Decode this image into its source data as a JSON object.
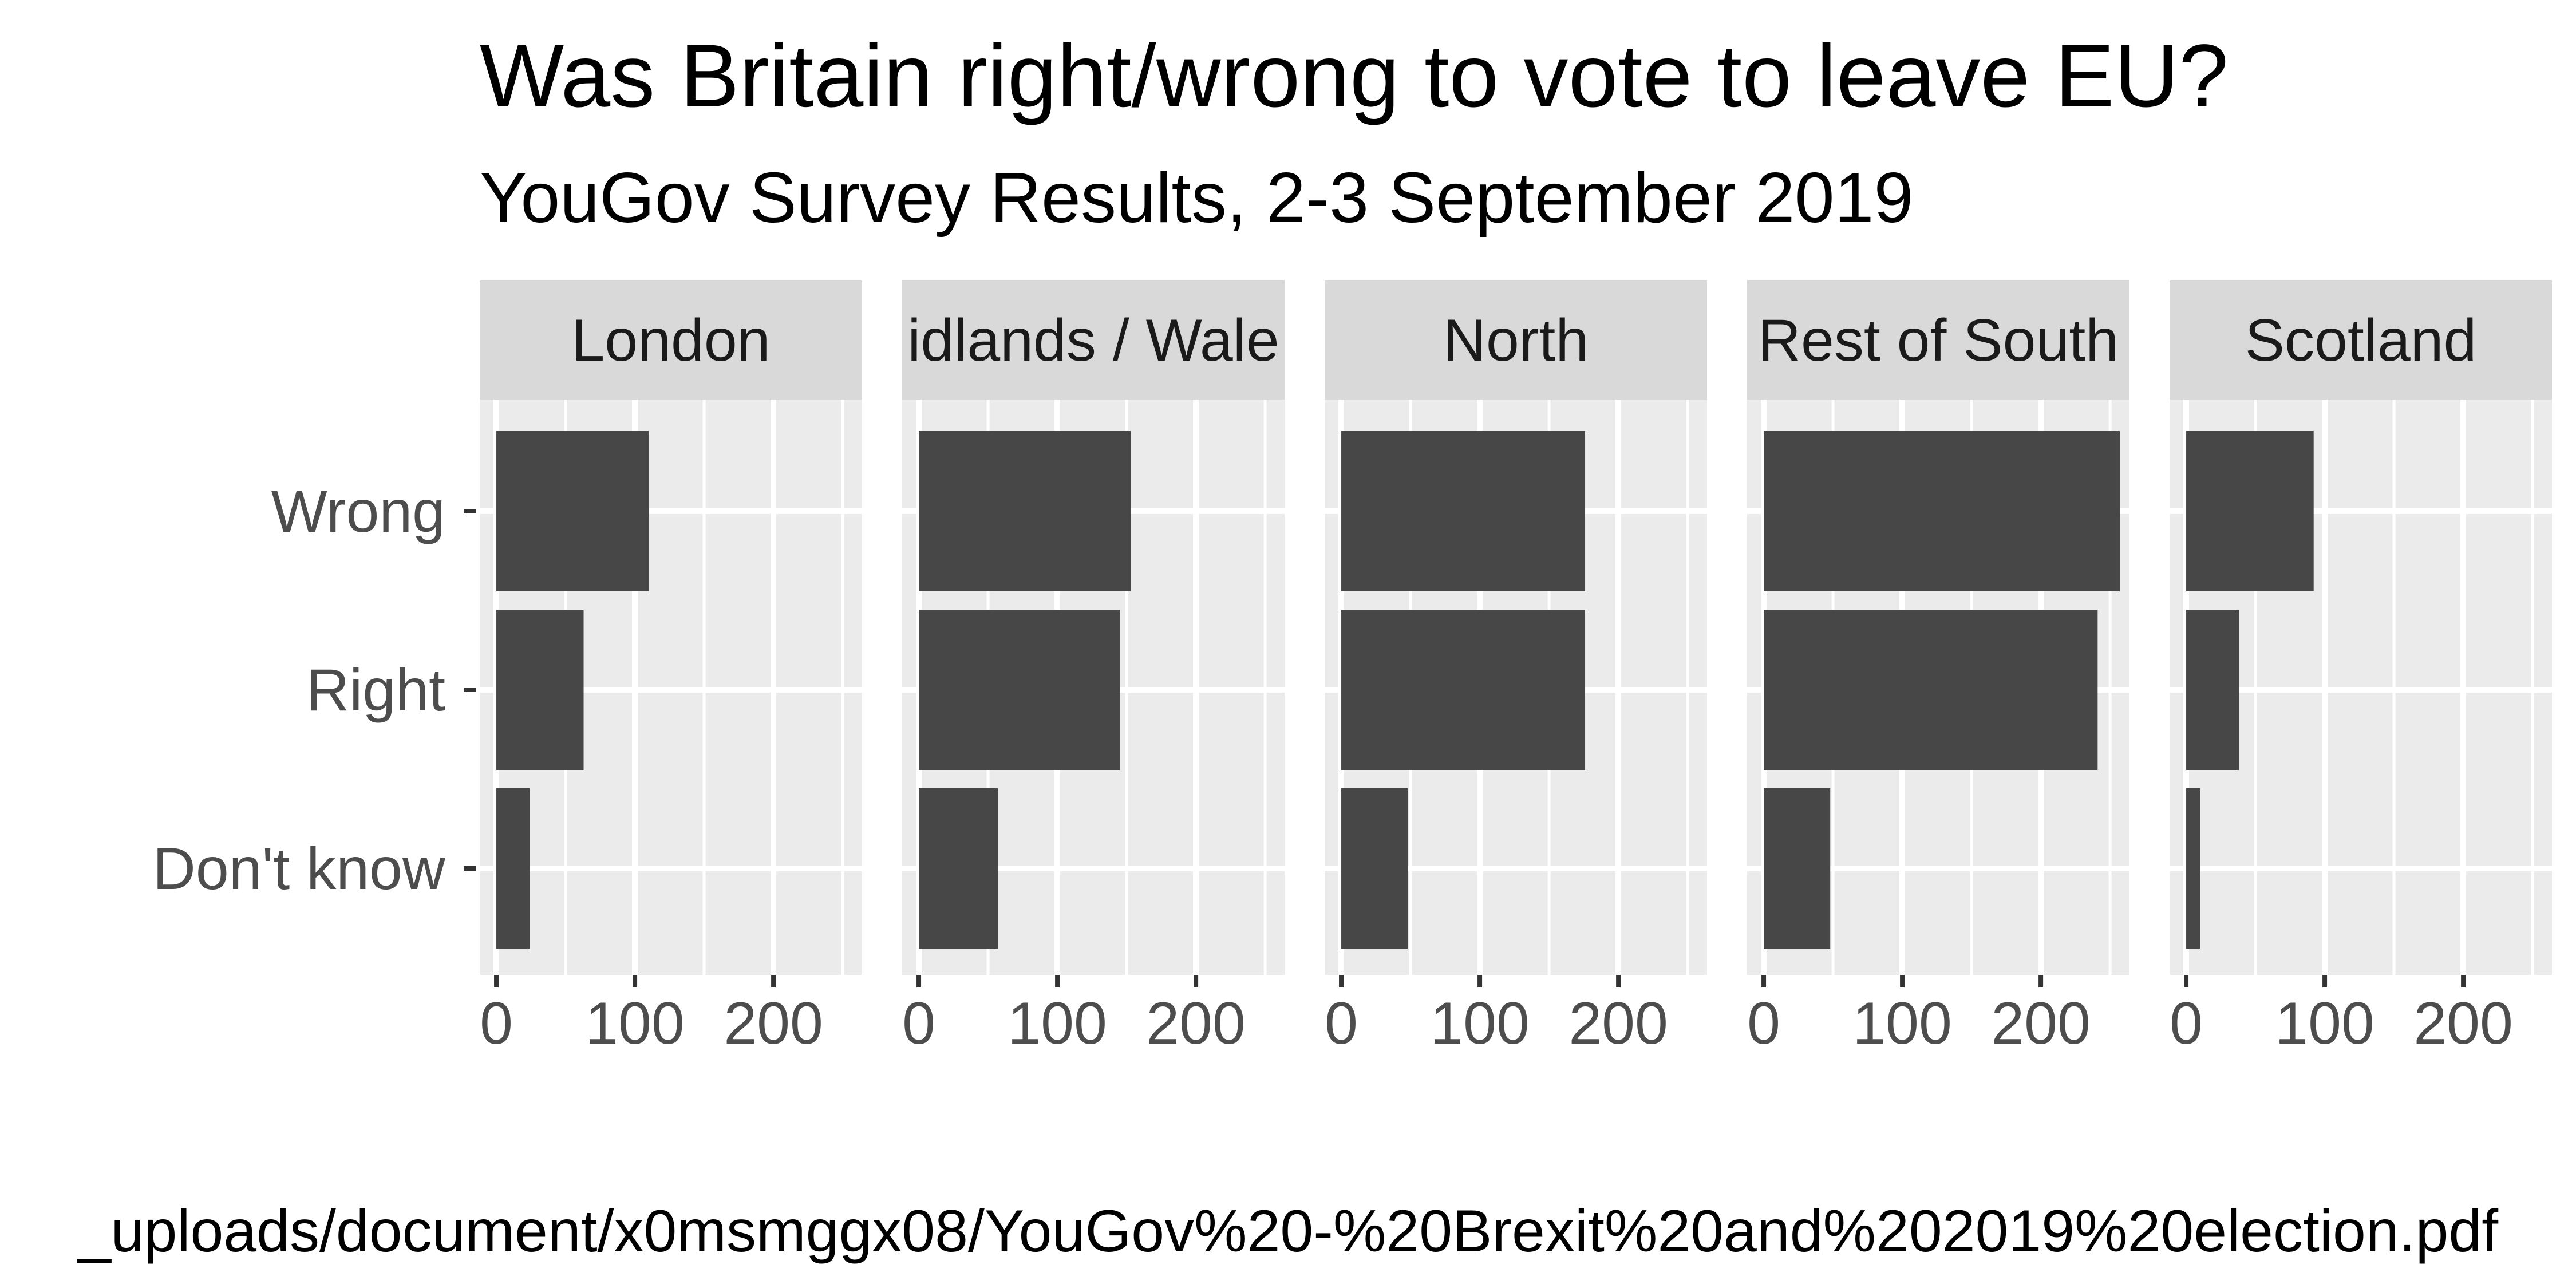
{
  "chart_data": {
    "type": "bar",
    "orientation": "horizontal",
    "faceted": true,
    "title": "Was Britain right/wrong to vote to leave EU?",
    "subtitle": "YouGov Survey Results, 2-3 September 2019",
    "caption": "_uploads/document/x0msmggx08/YouGov%20-%20Brexit%20and%202019%20election.pdf",
    "xlabel": "",
    "ylabel": "",
    "categories": [
      "Wrong",
      "Right",
      "Don't know"
    ],
    "x_ticks": [
      "0",
      "100",
      "200"
    ],
    "xlim": [
      -12,
      264
    ],
    "grid": true,
    "colors": {
      "bar": "#474747",
      "panel_bg": "#ebebeb",
      "strip_bg": "#d9d9d9",
      "grid": "#ffffff",
      "tick": "#333333"
    },
    "panels": [
      {
        "name": "London",
        "strip_label": "London",
        "values": [
          110,
          63,
          24
        ]
      },
      {
        "name": "Midlands / Wales",
        "strip_label": "idlands / Wale",
        "values": [
          153,
          145,
          57
        ]
      },
      {
        "name": "North",
        "strip_label": "North",
        "values": [
          176,
          176,
          48
        ]
      },
      {
        "name": "Rest of South",
        "strip_label": "Rest of South",
        "values": [
          257,
          241,
          48
        ]
      },
      {
        "name": "Scotland",
        "strip_label": "Scotland",
        "values": [
          92,
          38,
          10
        ]
      }
    ]
  }
}
